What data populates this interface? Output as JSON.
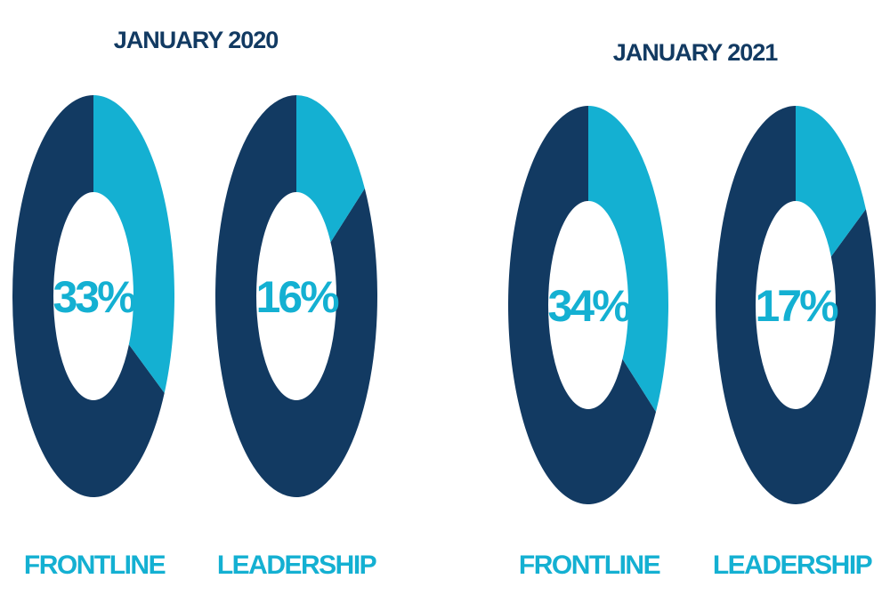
{
  "colors": {
    "dark": "#123A62",
    "light": "#14B0D2",
    "title": "#123A62",
    "text": "#14B0D2",
    "hole": "#FFFFFF"
  },
  "chart_data": [
    {
      "type": "pie",
      "title": "JANUARY 2020",
      "categories": [
        "FRONTLINE",
        "LEADERSHIP"
      ],
      "values": [
        33,
        16
      ],
      "value_labels": [
        "33%",
        "16%"
      ]
    },
    {
      "type": "pie",
      "title": "JANUARY 2021",
      "categories": [
        "FRONTLINE",
        "LEADERSHIP"
      ],
      "values": [
        34,
        17
      ],
      "value_labels": [
        "34%",
        "17%"
      ]
    }
  ]
}
